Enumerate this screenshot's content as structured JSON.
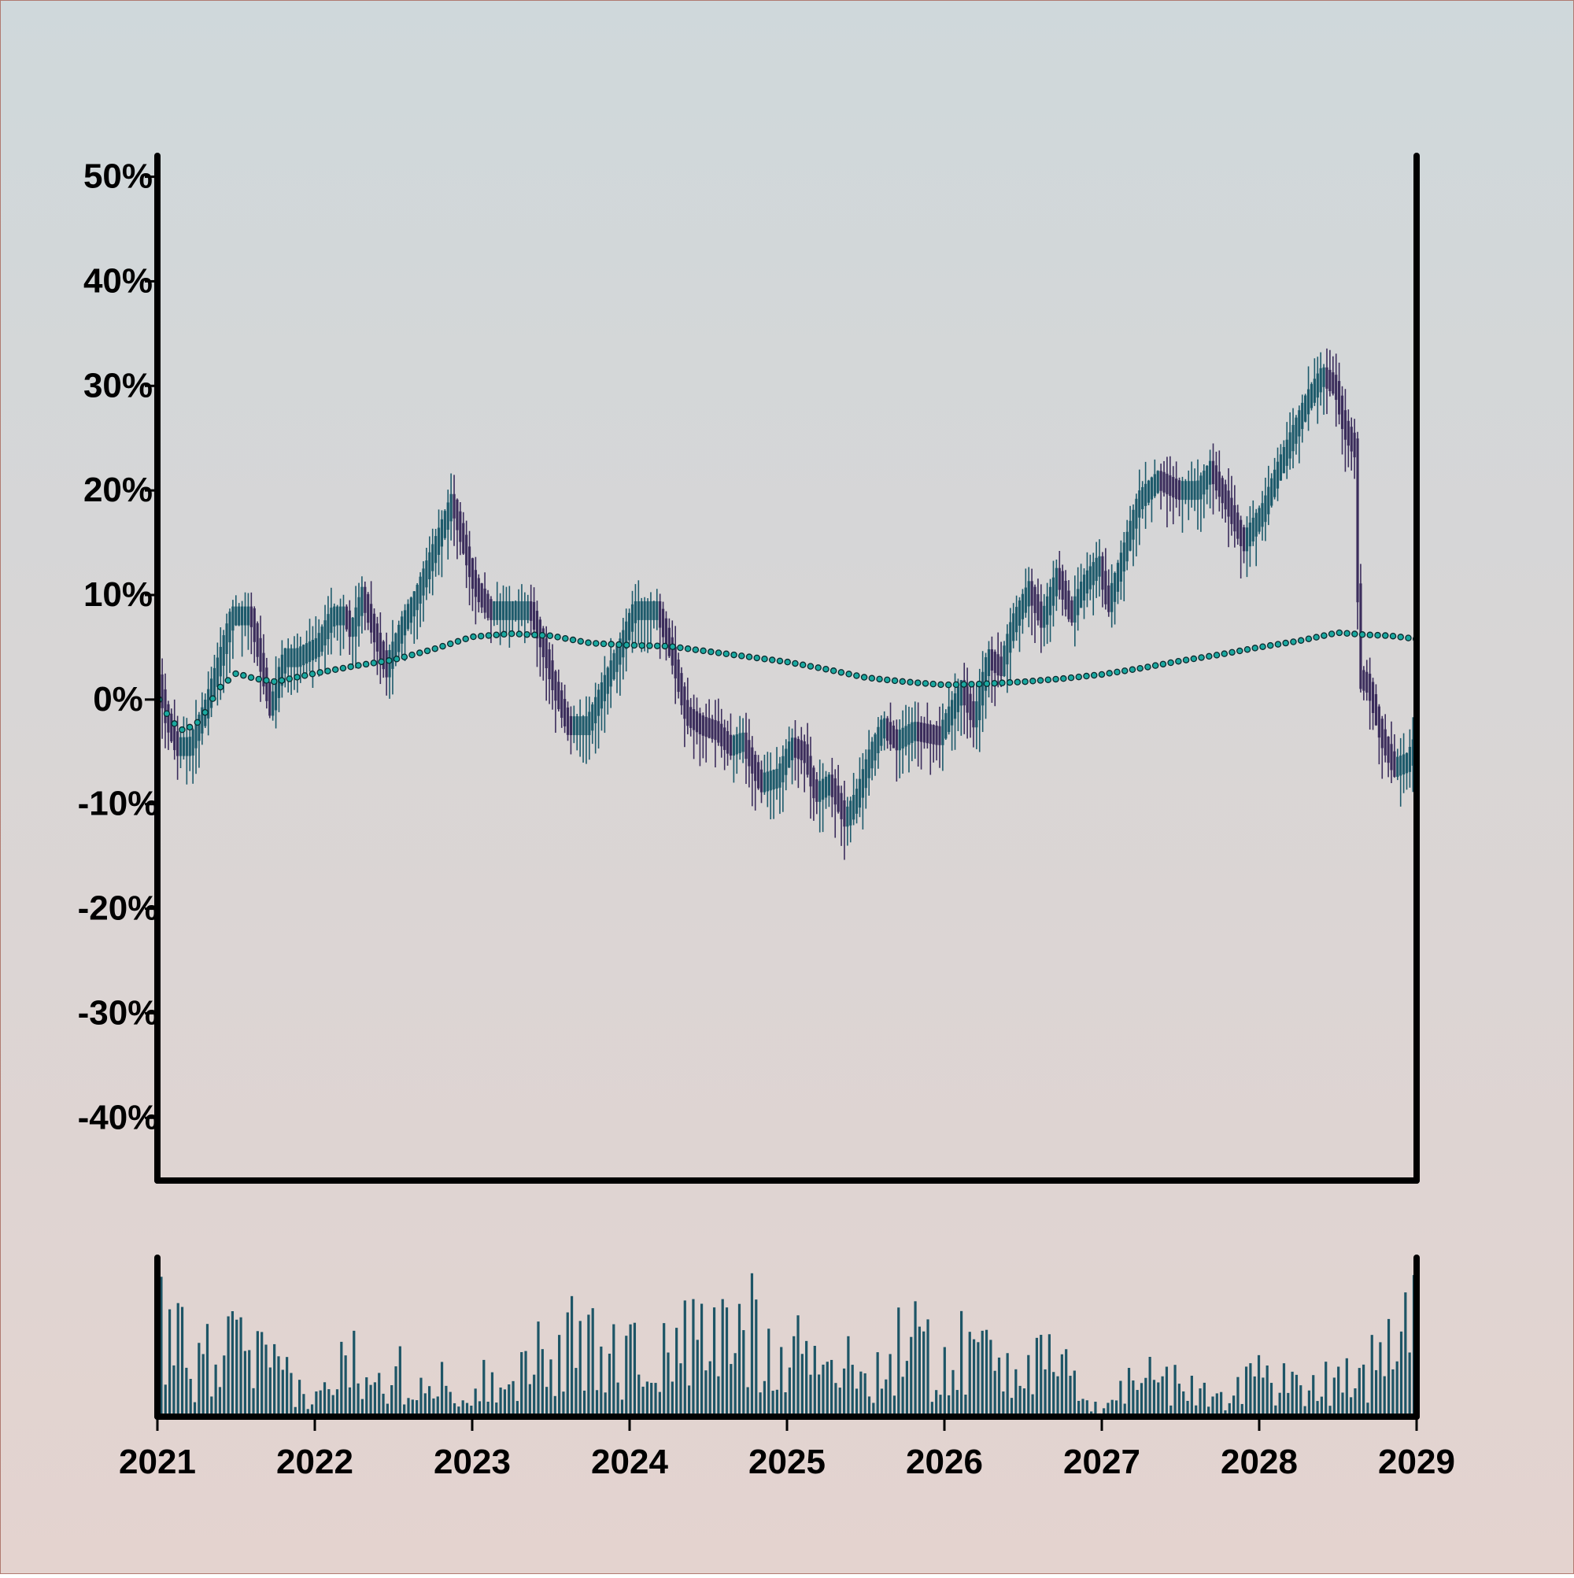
{
  "colors": {
    "bg_top": "#cfd8db",
    "bg_bottom": "#e4d3cf",
    "axis": "#000000",
    "candle_up": "#1d5a6b",
    "candle_down": "#3b2d5c",
    "ma_fill": "#1aa9a0",
    "ma_edge": "#0b2a2f",
    "volume": "#1d5566"
  },
  "chart_data": {
    "type": "candlestick",
    "title": "",
    "xlabel": "",
    "ylabel": "",
    "y_unit": "%",
    "ylim": [
      -46,
      52
    ],
    "yticks": [
      50,
      40,
      30,
      20,
      10,
      0,
      -10,
      -20,
      -30,
      -40
    ],
    "ytick_labels": [
      "50%",
      "40%",
      "30%",
      "20%",
      "10%",
      "0%",
      "-10%",
      "-20%",
      "-30%",
      "-40%"
    ],
    "x_range": [
      "2021-01",
      "2029-01"
    ],
    "xtick_labels": [
      "2021",
      "2022",
      "2023",
      "2024",
      "2025",
      "2026",
      "2027",
      "2028",
      "2029"
    ],
    "close_path": [
      [
        "2021-01-05",
        1.5
      ],
      [
        "2021-01-20",
        -1.5
      ],
      [
        "2021-02-15",
        -4.5
      ],
      [
        "2021-03-15",
        -4.5
      ],
      [
        "2021-04-20",
        -1
      ],
      [
        "2021-05-25",
        4
      ],
      [
        "2021-06-20",
        8
      ],
      [
        "2021-08-05",
        8
      ],
      [
        "2021-08-25",
        4
      ],
      [
        "2021-09-20",
        -1
      ],
      [
        "2021-10-20",
        4
      ],
      [
        "2021-11-20",
        4
      ],
      [
        "2022-01-05",
        5
      ],
      [
        "2022-02-10",
        8
      ],
      [
        "2022-03-10",
        8
      ],
      [
        "2022-03-25",
        6.5
      ],
      [
        "2022-04-20",
        10
      ],
      [
        "2022-05-20",
        6
      ],
      [
        "2022-06-15",
        3
      ],
      [
        "2022-07-20",
        7
      ],
      [
        "2022-08-25",
        10
      ],
      [
        "2022-10-10",
        15
      ],
      [
        "2022-11-15",
        19
      ],
      [
        "2022-12-10",
        15
      ],
      [
        "2023-01-05",
        11
      ],
      [
        "2023-02-10",
        8.5
      ],
      [
        "2023-05-15",
        8.5
      ],
      [
        "2023-06-10",
        5.5
      ],
      [
        "2023-07-10",
        1
      ],
      [
        "2023-08-10",
        -2.5
      ],
      [
        "2023-09-25",
        -2.5
      ],
      [
        "2023-10-30",
        1
      ],
      [
        "2023-12-10",
        5
      ],
      [
        "2024-01-10",
        8.5
      ],
      [
        "2024-03-05",
        8.5
      ],
      [
        "2024-04-10",
        4
      ],
      [
        "2024-05-10",
        -1.5
      ],
      [
        "2024-06-15",
        -2.5
      ],
      [
        "2024-07-20",
        -3
      ],
      [
        "2024-08-20",
        -4.5
      ],
      [
        "2024-09-20",
        -4
      ],
      [
        "2024-10-30",
        -8
      ],
      [
        "2024-12-10",
        -7.5
      ],
      [
        "2025-01-10",
        -4.5
      ],
      [
        "2025-02-10",
        -5
      ],
      [
        "2025-03-05",
        -9
      ],
      [
        "2025-04-10",
        -8
      ],
      [
        "2025-05-15",
        -11.5
      ],
      [
        "2025-06-10",
        -9.5
      ],
      [
        "2025-07-10",
        -5.5
      ],
      [
        "2025-08-10",
        -2.5
      ],
      [
        "2025-09-10",
        -4
      ],
      [
        "2025-10-20",
        -3
      ],
      [
        "2025-12-20",
        -3.5
      ],
      [
        "2026-02-10",
        1
      ],
      [
        "2026-03-10",
        -2
      ],
      [
        "2026-04-10",
        4
      ],
      [
        "2026-05-10",
        3
      ],
      [
        "2026-06-05",
        7
      ],
      [
        "2026-07-15",
        10.5
      ],
      [
        "2026-08-15",
        7.5
      ],
      [
        "2026-09-20",
        12
      ],
      [
        "2026-10-20",
        8
      ],
      [
        "2026-11-20",
        11
      ],
      [
        "2026-12-25",
        13
      ],
      [
        "2027-01-15",
        9
      ],
      [
        "2027-02-25",
        14.5
      ],
      [
        "2027-03-25",
        19
      ],
      [
        "2027-05-10",
        21
      ],
      [
        "2027-06-25",
        20
      ],
      [
        "2027-08-10",
        20
      ],
      [
        "2027-09-10",
        22
      ],
      [
        "2027-10-15",
        19
      ],
      [
        "2027-11-25",
        15
      ],
      [
        "2028-01-10",
        18
      ],
      [
        "2028-02-10",
        21.5
      ],
      [
        "2028-03-10",
        24.5
      ],
      [
        "2028-04-20",
        28.5
      ],
      [
        "2028-05-25",
        31
      ],
      [
        "2028-06-25",
        30
      ],
      [
        "2028-07-15",
        26
      ],
      [
        "2028-08-10",
        24
      ],
      [
        "2028-08-20",
        2
      ],
      [
        "2028-09-10",
        1.5
      ],
      [
        "2028-10-10",
        -3.5
      ],
      [
        "2028-11-10",
        -6.5
      ],
      [
        "2028-12-10",
        -6
      ],
      [
        "2028-12-30",
        -4
      ]
    ],
    "moving_average": [
      [
        "2021-01-05",
        0
      ],
      [
        "2021-02-01",
        -2
      ],
      [
        "2021-03-01",
        -3
      ],
      [
        "2021-04-10",
        -2
      ],
      [
        "2021-05-20",
        1
      ],
      [
        "2021-07-01",
        2.5
      ],
      [
        "2021-08-15",
        2
      ],
      [
        "2021-10-01",
        1.7
      ],
      [
        "2022-01-01",
        2.5
      ],
      [
        "2022-04-01",
        3.2
      ],
      [
        "2022-07-01",
        3.8
      ],
      [
        "2022-10-01",
        4.8
      ],
      [
        "2023-01-01",
        6
      ],
      [
        "2023-04-01",
        6.3
      ],
      [
        "2023-07-01",
        6.1
      ],
      [
        "2023-10-01",
        5.4
      ],
      [
        "2024-01-01",
        5.2
      ],
      [
        "2024-04-01",
        5.1
      ],
      [
        "2024-07-01",
        4.6
      ],
      [
        "2024-10-01",
        4.1
      ],
      [
        "2025-01-01",
        3.6
      ],
      [
        "2025-04-01",
        2.9
      ],
      [
        "2025-07-01",
        2.1
      ],
      [
        "2025-10-01",
        1.7
      ],
      [
        "2026-01-01",
        1.4
      ],
      [
        "2026-04-01",
        1.5
      ],
      [
        "2026-07-01",
        1.7
      ],
      [
        "2026-10-01",
        2
      ],
      [
        "2027-01-01",
        2.4
      ],
      [
        "2027-04-01",
        3
      ],
      [
        "2027-07-01",
        3.7
      ],
      [
        "2027-10-01",
        4.3
      ],
      [
        "2028-01-01",
        5
      ],
      [
        "2028-04-01",
        5.6
      ],
      [
        "2028-07-01",
        6.4
      ],
      [
        "2028-09-01",
        6.2
      ],
      [
        "2028-11-01",
        6.1
      ],
      [
        "2028-12-30",
        5.8
      ]
    ],
    "volume_envelope": [
      [
        "2021-01",
        0.9
      ],
      [
        "2021-04",
        0.55
      ],
      [
        "2021-07",
        0.7
      ],
      [
        "2021-10",
        0.45
      ],
      [
        "2022-01",
        0.15
      ],
      [
        "2022-04",
        0.65
      ],
      [
        "2022-07",
        0.5
      ],
      [
        "2022-10",
        0.35
      ],
      [
        "2023-01",
        0.3
      ],
      [
        "2023-04",
        0.5
      ],
      [
        "2023-07",
        0.7
      ],
      [
        "2023-10",
        0.75
      ],
      [
        "2024-01",
        0.6
      ],
      [
        "2024-04",
        0.7
      ],
      [
        "2024-07",
        0.75
      ],
      [
        "2024-10",
        0.9
      ],
      [
        "2025-01",
        0.8
      ],
      [
        "2025-04",
        0.6
      ],
      [
        "2025-07",
        0.4
      ],
      [
        "2025-10",
        0.75
      ],
      [
        "2026-01",
        0.6
      ],
      [
        "2026-04",
        0.7
      ],
      [
        "2026-07",
        0.6
      ],
      [
        "2026-10",
        0.45
      ],
      [
        "2027-01",
        0.05
      ],
      [
        "2027-04",
        0.5
      ],
      [
        "2027-07",
        0.3
      ],
      [
        "2027-10",
        0.2
      ],
      [
        "2028-01",
        0.45
      ],
      [
        "2028-04",
        0.3
      ],
      [
        "2028-07",
        0.45
      ],
      [
        "2028-10",
        0.55
      ],
      [
        "2028-12",
        0.9
      ]
    ],
    "legend": "none",
    "grid": false
  }
}
